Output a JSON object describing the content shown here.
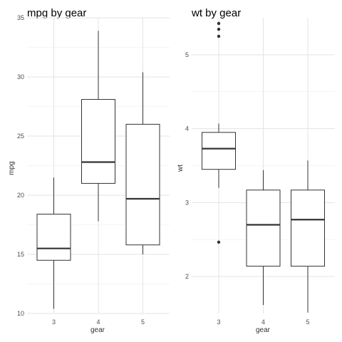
{
  "chart_data": [
    {
      "type": "boxplot",
      "title": "mpg by gear",
      "xlabel": "gear",
      "ylabel": "mpg",
      "categories": [
        "3",
        "4",
        "5"
      ],
      "ylim": [
        10,
        35
      ],
      "yticks": [
        10,
        15,
        20,
        25,
        30,
        35
      ],
      "grid": true,
      "boxes": [
        {
          "category": "3",
          "lower_whisker": 10.4,
          "q1": 14.5,
          "median": 15.5,
          "q3": 18.4,
          "upper_whisker": 21.5,
          "outliers": []
        },
        {
          "category": "4",
          "lower_whisker": 17.8,
          "q1": 21.0,
          "median": 22.8,
          "q3": 28.1,
          "upper_whisker": 33.9,
          "outliers": []
        },
        {
          "category": "5",
          "lower_whisker": 15.0,
          "q1": 15.8,
          "median": 19.7,
          "q3": 26.0,
          "upper_whisker": 30.4,
          "outliers": []
        }
      ]
    },
    {
      "type": "boxplot",
      "title": "wt by gear",
      "xlabel": "gear",
      "ylabel": "wt",
      "categories": [
        "3",
        "4",
        "5"
      ],
      "ylim": [
        1.5,
        5.5
      ],
      "yticks": [
        2,
        3,
        4,
        5
      ],
      "grid": true,
      "boxes": [
        {
          "category": "3",
          "lower_whisker": 3.2,
          "q1": 3.45,
          "median": 3.73,
          "q3": 3.95,
          "upper_whisker": 4.07,
          "outliers": [
            2.465,
            5.25,
            5.345,
            5.424
          ]
        },
        {
          "category": "4",
          "lower_whisker": 1.615,
          "q1": 2.14,
          "median": 2.7,
          "q3": 3.17,
          "upper_whisker": 3.44,
          "outliers": []
        },
        {
          "category": "5",
          "lower_whisker": 1.513,
          "q1": 2.14,
          "median": 2.77,
          "q3": 3.17,
          "upper_whisker": 3.57,
          "outliers": []
        }
      ]
    }
  ]
}
